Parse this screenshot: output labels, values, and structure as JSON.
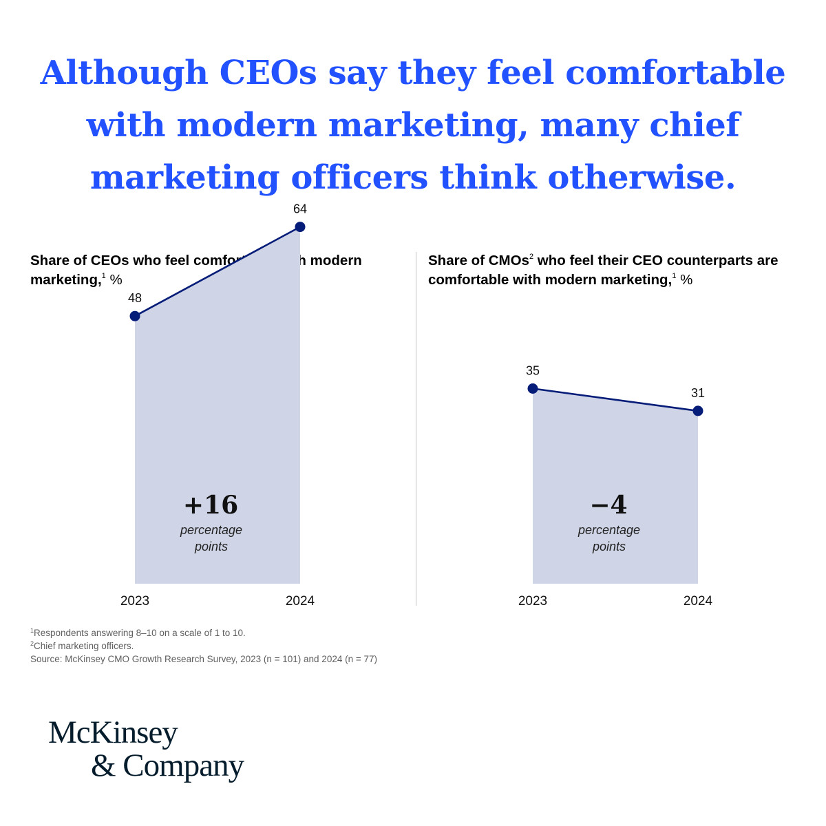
{
  "headline": {
    "lines": [
      "Although CEOs say they feel comfortable",
      "with modern marketing, many chief",
      "marketing officers think otherwise."
    ],
    "color": "#2251ff"
  },
  "colors": {
    "line": "#051c78",
    "fill": "#cfd5e6",
    "divider": "#c4c4c4"
  },
  "chart_data": [
    {
      "type": "area",
      "title": "Share of CEOs who feel comfortable with modern marketing,",
      "title_footnote": "1",
      "title_unit": "%",
      "categories": [
        "2023",
        "2024"
      ],
      "values": [
        48,
        64
      ],
      "ylim": [
        0,
        100
      ],
      "annotation": {
        "value": "+16",
        "label_lines": [
          "percentage",
          "points"
        ]
      }
    },
    {
      "type": "area",
      "title_prefix": "Share of CMOs",
      "title_prefix_footnote": "2",
      "title": "who feel their CEO counterparts are comfortable with modern marketing,",
      "title_footnote": "1",
      "title_unit": "%",
      "categories": [
        "2023",
        "2024"
      ],
      "values": [
        35,
        31
      ],
      "ylim": [
        0,
        100
      ],
      "annotation": {
        "value": "−4",
        "label_lines": [
          "percentage",
          "points"
        ]
      }
    }
  ],
  "footnotes": [
    {
      "marker": "1",
      "text": "Respondents answering 8–10 on a scale of 1 to 10."
    },
    {
      "marker": "2",
      "text": "Chief marketing officers."
    },
    {
      "marker": "",
      "text": " Source: McKinsey CMO Growth Research Survey, 2023 (n = 101) and 2024 (n = 77)"
    }
  ],
  "logo": {
    "line1": "McKinsey",
    "line2": "& Company"
  }
}
